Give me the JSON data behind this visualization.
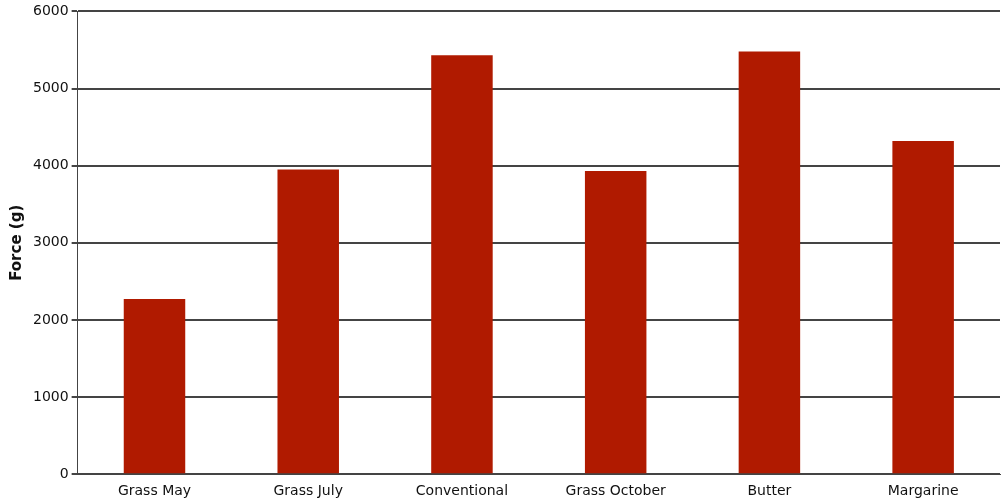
{
  "chart_data": {
    "type": "bar",
    "ylabel": "Force (g)",
    "categories": [
      "Grass May",
      "Grass July",
      "Conventional",
      "Grass October",
      "Butter",
      "Margarine"
    ],
    "values": [
      2270,
      3950,
      5430,
      3930,
      5480,
      4320
    ],
    "color": "#b01a00",
    "ylim": [
      0,
      6000
    ],
    "yticks": [
      0,
      1000,
      2000,
      3000,
      4000,
      5000,
      6000
    ],
    "grid": "y"
  }
}
